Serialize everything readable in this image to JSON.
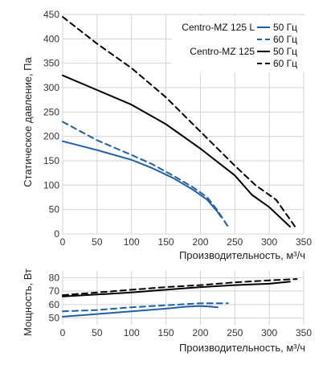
{
  "chart_data": [
    {
      "type": "line",
      "xlabel": "Производительность, м³/ч",
      "ylabel": "Статическое давление, Па",
      "xlim": [
        0,
        350
      ],
      "ylim": [
        0,
        450
      ],
      "xticks": [
        0,
        50,
        100,
        150,
        200,
        250,
        300,
        350
      ],
      "yticks": [
        0,
        50,
        100,
        150,
        200,
        250,
        300,
        350,
        400,
        450
      ],
      "grid": true,
      "legend_position": "top-right",
      "legend_groups": [
        {
          "model": "Centro-MZ 125 L",
          "entries": [
            "50 Гц",
            "60 Гц"
          ]
        },
        {
          "model": "Centro-MZ 125",
          "entries": [
            "50 Гц",
            "60 Гц"
          ]
        }
      ],
      "series": [
        {
          "model": "Centro-MZ 125 L",
          "name": "50 Гц",
          "color": "#1f5fa8",
          "dash": false,
          "x": [
            0,
            50,
            100,
            130,
            160,
            190,
            210,
            225,
            230
          ],
          "y": [
            190,
            172,
            152,
            135,
            115,
            90,
            70,
            45,
            35
          ]
        },
        {
          "model": "Centro-MZ 125 L",
          "name": "60 Гц",
          "color": "#1f5fa8",
          "dash": true,
          "x": [
            0,
            50,
            100,
            130,
            160,
            190,
            210,
            225,
            240
          ],
          "y": [
            230,
            192,
            162,
            143,
            120,
            95,
            75,
            48,
            15
          ]
        },
        {
          "model": "Centro-MZ 125",
          "name": "50 Гц",
          "color": "#000000",
          "dash": false,
          "x": [
            0,
            50,
            100,
            150,
            200,
            250,
            275,
            300,
            330
          ],
          "y": [
            325,
            295,
            265,
            225,
            175,
            120,
            80,
            55,
            15
          ]
        },
        {
          "model": "Centro-MZ 125",
          "name": "60 Гц",
          "color": "#000000",
          "dash": true,
          "x": [
            0,
            50,
            100,
            150,
            200,
            250,
            280,
            310,
            340
          ],
          "y": [
            445,
            390,
            340,
            280,
            210,
            140,
            100,
            70,
            10
          ]
        }
      ]
    },
    {
      "type": "line",
      "xlabel": "Производительность, м³/ч",
      "ylabel": "Мощность, Вт",
      "xlim": [
        0,
        350
      ],
      "ylim": [
        45,
        85
      ],
      "xticks": [
        0,
        50,
        100,
        150,
        200,
        250,
        300,
        350
      ],
      "yticks": [
        50,
        60,
        70,
        80
      ],
      "grid": true,
      "series": [
        {
          "model": "Centro-MZ 125 L",
          "name": "50 Гц",
          "color": "#1f5fa8",
          "dash": false,
          "x": [
            0,
            50,
            100,
            150,
            180,
            200,
            215,
            225
          ],
          "y": [
            51,
            53,
            55,
            57,
            58.5,
            59,
            58.5,
            58
          ]
        },
        {
          "model": "Centro-MZ 125 L",
          "name": "60 Гц",
          "color": "#1f5fa8",
          "dash": true,
          "x": [
            0,
            50,
            100,
            150,
            200,
            230,
            240
          ],
          "y": [
            55,
            56,
            58,
            59.5,
            61,
            61,
            61
          ]
        },
        {
          "model": "Centro-MZ 125",
          "name": "50 Гц",
          "color": "#000000",
          "dash": false,
          "x": [
            0,
            50,
            100,
            150,
            200,
            250,
            300,
            330
          ],
          "y": [
            66,
            67.5,
            69,
            71,
            73,
            74.5,
            75.5,
            77
          ]
        },
        {
          "model": "Centro-MZ 125",
          "name": "60 Гц",
          "color": "#000000",
          "dash": true,
          "x": [
            0,
            50,
            100,
            150,
            200,
            250,
            300,
            340
          ],
          "y": [
            67,
            69,
            71,
            73,
            74.5,
            76.5,
            78,
            79
          ]
        }
      ]
    }
  ]
}
